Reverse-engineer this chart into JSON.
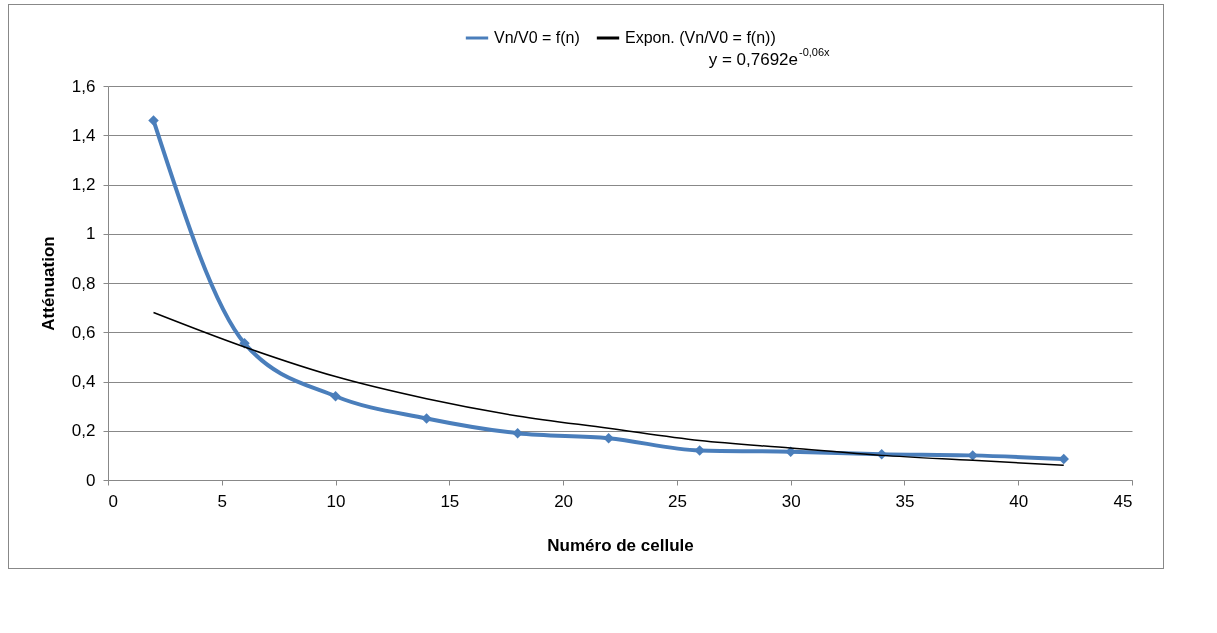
{
  "chart_data": {
    "type": "line",
    "xlabel": "Numéro de cellule",
    "ylabel": "Atténuation",
    "xlim": [
      0,
      45
    ],
    "ylim": [
      0,
      1.6
    ],
    "xticks": [
      0,
      5,
      10,
      15,
      20,
      25,
      30,
      35,
      40,
      45
    ],
    "yticks": [
      0,
      {
        "value": 0.2,
        "label": "0,2"
      },
      {
        "value": 0.4,
        "label": "0,4"
      },
      {
        "value": 0.6,
        "label": "0,6"
      },
      {
        "value": 0.8,
        "label": "0,8"
      },
      1,
      {
        "value": 1.2,
        "label": "1,2"
      },
      {
        "value": 1.4,
        "label": "1,4"
      },
      {
        "value": 1.6,
        "label": "1,6"
      }
    ],
    "grid": "y",
    "legend": "top",
    "series": [
      {
        "name": "Vn/V0 = f(n)",
        "color": "#4a7ebb",
        "marker": "diamond",
        "x": [
          2,
          6,
          10,
          14,
          18,
          22,
          26,
          30,
          34,
          38,
          42
        ],
        "values": [
          1.46,
          0.555,
          0.34,
          0.25,
          0.19,
          0.17,
          0.12,
          0.115,
          0.105,
          0.1,
          0.085
        ]
      },
      {
        "name": "Expon. (Vn/V0 = f(n))",
        "color": "#000000",
        "marker": "none",
        "x": [
          2,
          6,
          10,
          14,
          18,
          22,
          26,
          30,
          34,
          38,
          42
        ],
        "values": [
          0.68,
          0.54,
          0.42,
          0.33,
          0.26,
          0.21,
          0.16,
          0.13,
          0.1,
          0.08,
          0.06
        ]
      }
    ],
    "annotations": [
      "y = 0,7692e$^{-0,06x}$"
    ]
  }
}
